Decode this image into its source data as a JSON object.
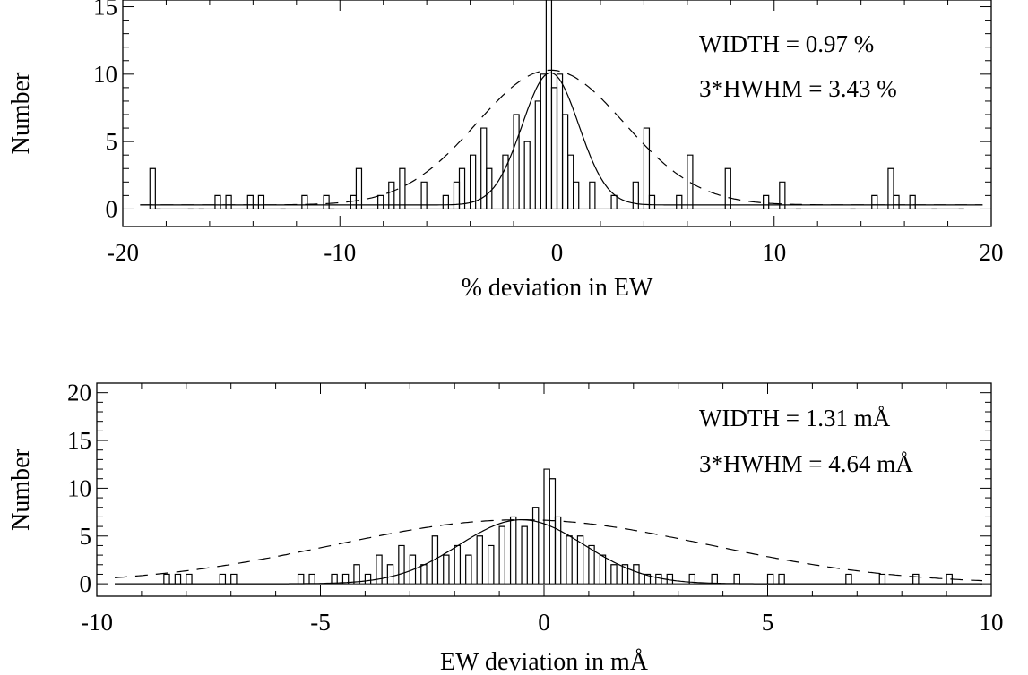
{
  "chart_data": [
    {
      "type": "histogram",
      "xlabel": "% deviation in EW",
      "ylabel": "Number",
      "xlim": [
        -20,
        20
      ],
      "ylim": [
        -1.3,
        15.5
      ],
      "xticks": [
        -20,
        -10,
        0,
        10,
        20
      ],
      "yticks": [
        0,
        5,
        10,
        15
      ],
      "annotations": [
        "WIDTH = 0.97 %",
        "3*HWHM = 3.43 %"
      ],
      "bin_width": 0.25,
      "hist": [
        [
          -18.75,
          3
        ],
        [
          -18.5,
          0
        ],
        [
          -17,
          0
        ],
        [
          -16.5,
          0
        ],
        [
          -15.75,
          1
        ],
        [
          -15.25,
          1
        ],
        [
          -14.25,
          1
        ],
        [
          -13.75,
          1
        ],
        [
          -12.75,
          0
        ],
        [
          -11.75,
          1
        ],
        [
          -10.75,
          1
        ],
        [
          -10.5,
          0
        ],
        [
          -9.5,
          1
        ],
        [
          -9.25,
          3
        ],
        [
          -8.25,
          1
        ],
        [
          -7.75,
          2
        ],
        [
          -7.25,
          3
        ],
        [
          -6.25,
          2
        ],
        [
          -5.25,
          1
        ],
        [
          -4.75,
          2
        ],
        [
          -4.5,
          3
        ],
        [
          -4,
          4
        ],
        [
          -3.5,
          6
        ],
        [
          -3.25,
          3
        ],
        [
          -2.5,
          4
        ],
        [
          -2,
          7
        ],
        [
          -1.5,
          5
        ],
        [
          -1,
          8
        ],
        [
          -0.75,
          10
        ],
        [
          -0.5,
          16
        ],
        [
          -0.25,
          9
        ],
        [
          0,
          10
        ],
        [
          0.25,
          7
        ],
        [
          0.5,
          4
        ],
        [
          0.75,
          2
        ],
        [
          1.5,
          2
        ],
        [
          2.5,
          1
        ],
        [
          3.5,
          2
        ],
        [
          4,
          6
        ],
        [
          4.25,
          1
        ],
        [
          5.5,
          1
        ],
        [
          6,
          4
        ],
        [
          7.75,
          3
        ],
        [
          9.5,
          1
        ],
        [
          10.25,
          2
        ],
        [
          11,
          0
        ],
        [
          13.5,
          0
        ],
        [
          14.5,
          1
        ],
        [
          15.25,
          3
        ],
        [
          15.5,
          1
        ],
        [
          16.25,
          1
        ],
        [
          17.25,
          0
        ],
        [
          18.5,
          0
        ]
      ],
      "fit_solid": {
        "type": "gaussian",
        "amplitude": 9.8,
        "center": -0.3,
        "sigma": 1.3,
        "offset": 0.3
      },
      "fit_dashed": {
        "type": "gaussian",
        "amplitude": 10.0,
        "center": -0.3,
        "sigma": 3.4,
        "offset": 0.3
      }
    },
    {
      "type": "histogram",
      "xlabel": "EW deviation in mÅ",
      "ylabel": "Number",
      "xlim": [
        -10,
        10
      ],
      "ylim": [
        -1.3,
        21
      ],
      "xticks": [
        -10,
        -5,
        0,
        5,
        10
      ],
      "yticks": [
        0,
        5,
        10,
        15,
        20
      ],
      "annotations": [
        "WIDTH = 1.31 mÅ",
        "3*HWHM = 4.64 mÅ"
      ],
      "bin_width": 0.125,
      "hist": [
        [
          -8.5,
          1
        ],
        [
          -8.25,
          1
        ],
        [
          -8,
          1
        ],
        [
          -7.25,
          1
        ],
        [
          -7,
          1
        ],
        [
          -5.5,
          1
        ],
        [
          -5.25,
          1
        ],
        [
          -4.75,
          1
        ],
        [
          -4.5,
          1
        ],
        [
          -4.25,
          2
        ],
        [
          -4,
          1
        ],
        [
          -3.75,
          3
        ],
        [
          -3.5,
          2
        ],
        [
          -3.25,
          4
        ],
        [
          -3,
          3
        ],
        [
          -2.75,
          2
        ],
        [
          -2.5,
          5
        ],
        [
          -2.25,
          3
        ],
        [
          -2,
          4
        ],
        [
          -1.75,
          3
        ],
        [
          -1.5,
          5
        ],
        [
          -1.25,
          4
        ],
        [
          -1,
          6
        ],
        [
          -0.75,
          7
        ],
        [
          -0.5,
          6
        ],
        [
          -0.25,
          8
        ],
        [
          0,
          12
        ],
        [
          0.125,
          11
        ],
        [
          0.25,
          7
        ],
        [
          0.5,
          5
        ],
        [
          0.75,
          5
        ],
        [
          1,
          4
        ],
        [
          1.25,
          3
        ],
        [
          1.5,
          2
        ],
        [
          1.75,
          2
        ],
        [
          2,
          2
        ],
        [
          2.25,
          1
        ],
        [
          2.5,
          1
        ],
        [
          2.75,
          1
        ],
        [
          3.25,
          1
        ],
        [
          3.75,
          1
        ],
        [
          4.25,
          1
        ],
        [
          5,
          1
        ],
        [
          5.25,
          1
        ],
        [
          6.75,
          1
        ],
        [
          7.5,
          1
        ],
        [
          8.25,
          1
        ],
        [
          9,
          1
        ]
      ],
      "fit_solid": {
        "type": "gaussian",
        "amplitude": 6.7,
        "center": -0.5,
        "sigma": 1.4,
        "offset": 0
      },
      "fit_dashed": {
        "type": "gaussian",
        "amplitude": 6.7,
        "center": -0.5,
        "sigma": 4.2,
        "offset": 0
      }
    }
  ]
}
